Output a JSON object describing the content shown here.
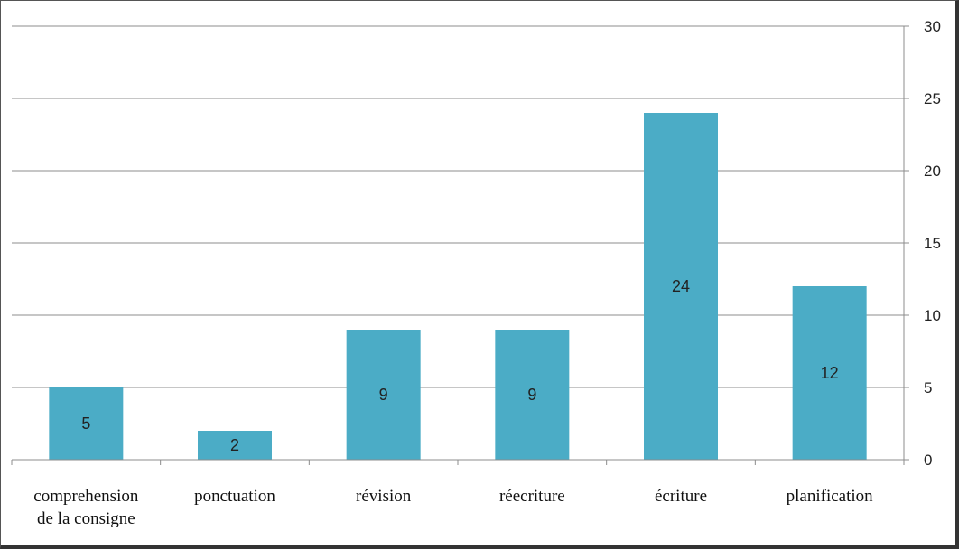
{
  "chart_data": {
    "type": "bar",
    "categories": [
      [
        "comprehension",
        "de la consigne"
      ],
      [
        "ponctuation"
      ],
      [
        "révision"
      ],
      [
        "réecriture"
      ],
      [
        "écriture"
      ],
      [
        "planification"
      ]
    ],
    "values": [
      5,
      2,
      9,
      9,
      24,
      12
    ],
    "data_labels": [
      "5",
      "2",
      "9",
      "9",
      "24",
      "12"
    ],
    "title": "",
    "xlabel": "",
    "ylabel": "",
    "ylim": [
      0,
      30
    ],
    "y_ticks": [
      0,
      5,
      10,
      15,
      20,
      25,
      30
    ],
    "y_axis_side": "right",
    "grid": true,
    "legend": "none",
    "bar_color": "#4bacc6",
    "gridline_color": "#8c8c8c"
  }
}
